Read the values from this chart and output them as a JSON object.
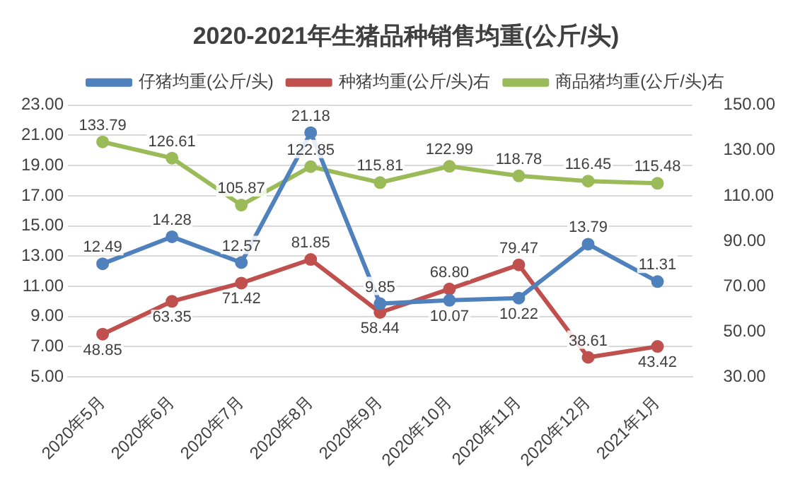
{
  "chart_data": {
    "type": "line",
    "title": "2020-2021年生猪品种销售均重(公斤/头)",
    "categories": [
      "2020年5月",
      "2020年6月",
      "2020年7月",
      "2020年8月",
      "2020年9月",
      "2020年10月",
      "2020年11月",
      "2020年12月",
      "2021年1月"
    ],
    "series": [
      {
        "name": "仔猪均重(公斤/头)",
        "color": "#4f81bd",
        "values": [
          12.49,
          14.28,
          12.57,
          21.18,
          9.85,
          10.07,
          10.22,
          13.79,
          11.31
        ],
        "value_labels": [
          "12.49",
          "14.28",
          "12.57",
          "21.18",
          "9.85",
          "10.07",
          "10.22",
          "13.79",
          "11.31"
        ]
      },
      {
        "name": "种猪均重(公斤/头)右",
        "color": "#c0504d",
        "axis": "y2",
        "values": [
          48.85,
          63.35,
          71.42,
          81.85,
          58.44,
          68.8,
          79.47,
          38.61,
          43.42
        ],
        "value_labels": [
          "48.85",
          "63.35",
          "71.42",
          "81.85",
          "58.44",
          "68.80",
          "79.47",
          "38.61",
          "43.42"
        ]
      },
      {
        "name": "商品猪均重(公斤/头)右",
        "color": "#9bbb59",
        "axis": "y2",
        "values": [
          133.79,
          126.61,
          105.87,
          122.85,
          115.81,
          122.99,
          118.78,
          116.45,
          115.48
        ],
        "value_labels": [
          "133.79",
          "126.61",
          "105.87",
          "122.85",
          "115.81",
          "122.99",
          "118.78",
          "116.45",
          "115.48"
        ]
      }
    ],
    "ylim": [
      5,
      23
    ],
    "yticks": [
      {
        "value": 5,
        "label": "5.00"
      },
      {
        "value": 7,
        "label": "7.00"
      },
      {
        "value": 9,
        "label": "9.00"
      },
      {
        "value": 11,
        "label": "11.00"
      },
      {
        "value": 13,
        "label": "13.00"
      },
      {
        "value": 15,
        "label": "15.00"
      },
      {
        "value": 17,
        "label": "17.00"
      },
      {
        "value": 19,
        "label": "19.00"
      },
      {
        "value": 21,
        "label": "21.00"
      },
      {
        "value": 23,
        "label": "23.00"
      }
    ],
    "y2lim": [
      30,
      150
    ],
    "y2ticks": [
      {
        "value": 30,
        "label": "30.00"
      },
      {
        "value": 50,
        "label": "50.00"
      },
      {
        "value": 70,
        "label": "70.00"
      },
      {
        "value": 90,
        "label": "90.00"
      },
      {
        "value": 110,
        "label": "110.00"
      },
      {
        "value": 130,
        "label": "130.00"
      },
      {
        "value": 150,
        "label": "150.00"
      }
    ],
    "grid": "y",
    "legend": "top",
    "marker": "circle",
    "line_style": "solid"
  }
}
